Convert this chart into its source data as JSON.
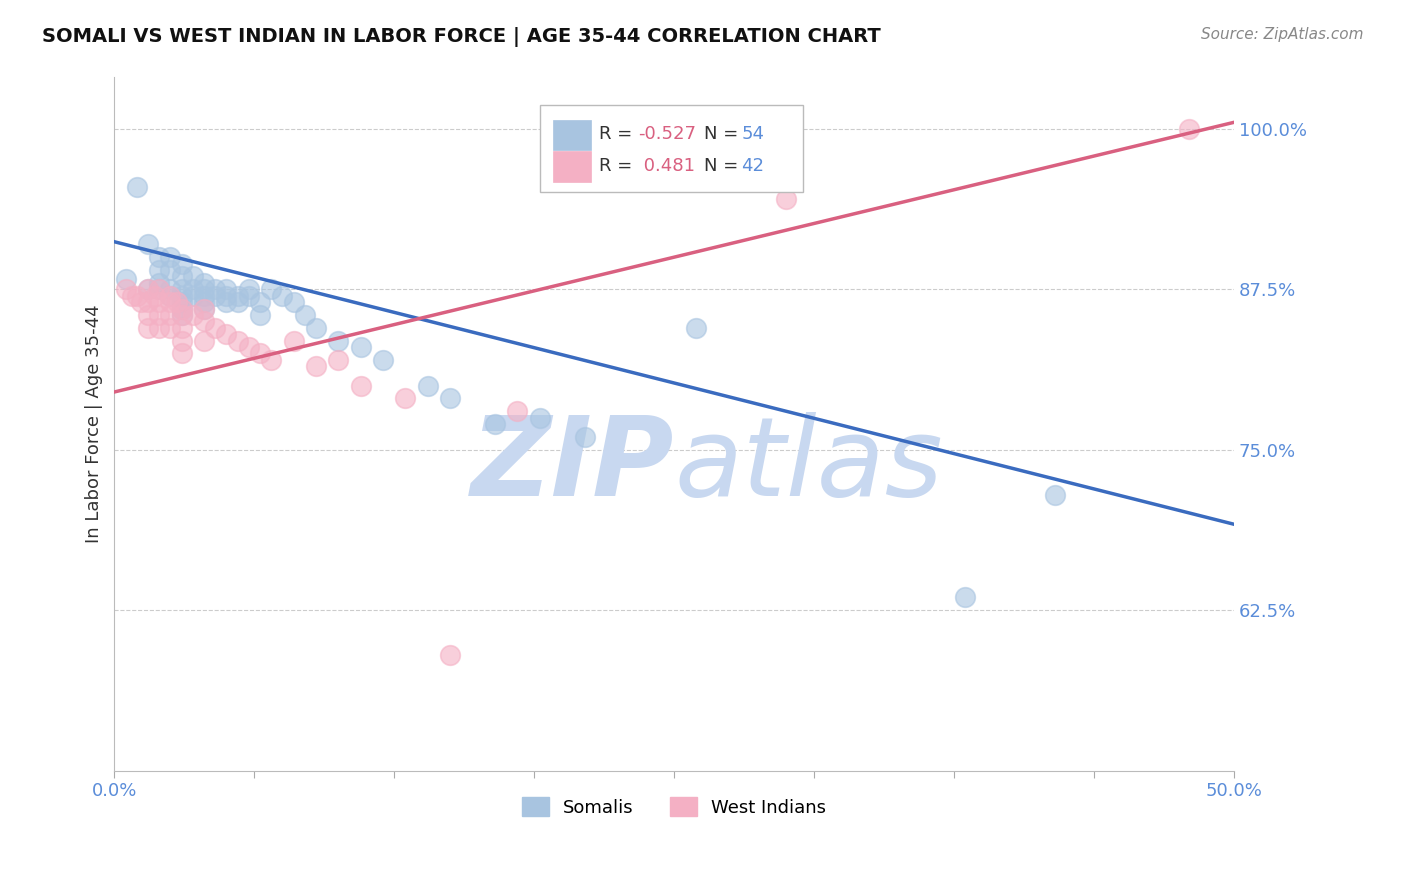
{
  "title": "SOMALI VS WEST INDIAN IN LABOR FORCE | AGE 35-44 CORRELATION CHART",
  "source": "Source: ZipAtlas.com",
  "ylabel": "In Labor Force | Age 35-44",
  "xlim": [
    0.0,
    0.5
  ],
  "ylim": [
    0.5,
    1.04
  ],
  "yticks": [
    0.625,
    0.75,
    0.875,
    1.0
  ],
  "ytick_labels": [
    "62.5%",
    "75.0%",
    "87.5%",
    "100.0%"
  ],
  "xticks": [
    0.0,
    0.0625,
    0.125,
    0.1875,
    0.25,
    0.3125,
    0.375,
    0.4375,
    0.5
  ],
  "somali_R": -0.527,
  "somali_N": 54,
  "westindian_R": 0.481,
  "westindian_N": 42,
  "somali_color": "#a8c4e0",
  "westindian_color": "#f4b0c4",
  "somali_line_color": "#3a6bbf",
  "westindian_line_color": "#d96080",
  "background_color": "#ffffff",
  "grid_color": "#cccccc",
  "axis_label_color": "#5b8dd9",
  "title_color": "#111111",
  "somali_x": [
    0.005,
    0.01,
    0.015,
    0.015,
    0.02,
    0.02,
    0.02,
    0.02,
    0.025,
    0.025,
    0.025,
    0.025,
    0.03,
    0.03,
    0.03,
    0.03,
    0.03,
    0.03,
    0.03,
    0.035,
    0.035,
    0.035,
    0.04,
    0.04,
    0.04,
    0.04,
    0.04,
    0.045,
    0.045,
    0.05,
    0.05,
    0.05,
    0.055,
    0.055,
    0.06,
    0.06,
    0.065,
    0.065,
    0.07,
    0.075,
    0.08,
    0.085,
    0.09,
    0.1,
    0.11,
    0.12,
    0.14,
    0.15,
    0.17,
    0.19,
    0.21,
    0.26,
    0.38,
    0.42
  ],
  "somali_y": [
    0.883,
    0.955,
    0.91,
    0.875,
    0.9,
    0.89,
    0.88,
    0.875,
    0.9,
    0.89,
    0.875,
    0.87,
    0.895,
    0.885,
    0.875,
    0.87,
    0.865,
    0.86,
    0.855,
    0.885,
    0.875,
    0.87,
    0.88,
    0.875,
    0.87,
    0.865,
    0.86,
    0.875,
    0.87,
    0.875,
    0.87,
    0.865,
    0.87,
    0.865,
    0.875,
    0.87,
    0.865,
    0.855,
    0.875,
    0.87,
    0.865,
    0.855,
    0.845,
    0.835,
    0.83,
    0.82,
    0.8,
    0.79,
    0.77,
    0.775,
    0.76,
    0.845,
    0.635,
    0.715
  ],
  "westindian_x": [
    0.005,
    0.008,
    0.01,
    0.012,
    0.015,
    0.015,
    0.015,
    0.015,
    0.018,
    0.02,
    0.02,
    0.02,
    0.02,
    0.025,
    0.025,
    0.025,
    0.025,
    0.028,
    0.03,
    0.03,
    0.03,
    0.03,
    0.03,
    0.035,
    0.04,
    0.04,
    0.04,
    0.045,
    0.05,
    0.055,
    0.06,
    0.065,
    0.07,
    0.08,
    0.09,
    0.1,
    0.11,
    0.13,
    0.15,
    0.18,
    0.3,
    0.48
  ],
  "westindian_y": [
    0.875,
    0.87,
    0.87,
    0.865,
    0.875,
    0.865,
    0.855,
    0.845,
    0.87,
    0.875,
    0.865,
    0.855,
    0.845,
    0.87,
    0.865,
    0.855,
    0.845,
    0.865,
    0.86,
    0.855,
    0.845,
    0.835,
    0.825,
    0.855,
    0.86,
    0.85,
    0.835,
    0.845,
    0.84,
    0.835,
    0.83,
    0.825,
    0.82,
    0.835,
    0.815,
    0.82,
    0.8,
    0.79,
    0.59,
    0.78,
    0.945,
    1.0
  ],
  "watermark_top": "ZIP",
  "watermark_bot": "atlas",
  "watermark_color": "#c8d8f0",
  "somali_trendline_x": [
    0.0,
    0.5
  ],
  "somali_trendline_y": [
    0.912,
    0.692
  ],
  "westindian_trendline_x": [
    0.0,
    0.5
  ],
  "westindian_trendline_y": [
    0.795,
    1.005
  ]
}
